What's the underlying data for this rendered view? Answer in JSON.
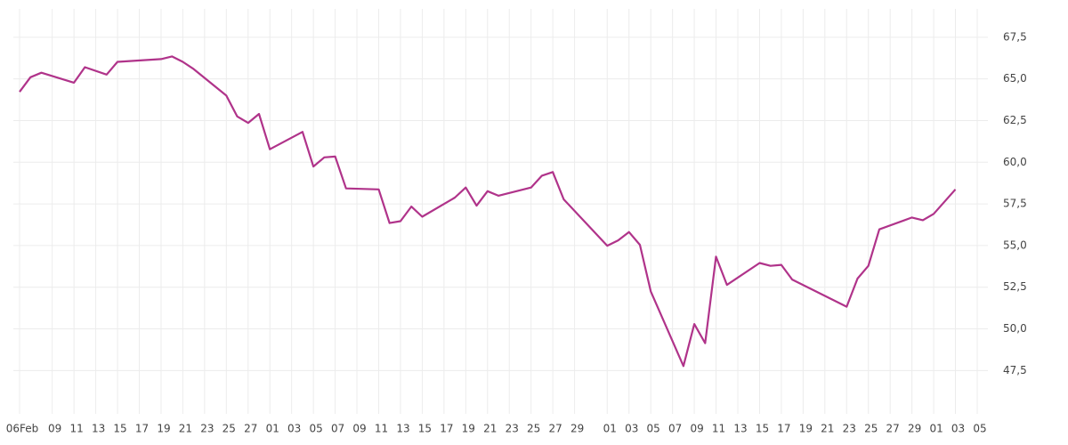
{
  "chart_data": {
    "type": "line",
    "color": "#b0338a",
    "grid": true,
    "x": [
      "02-06",
      "02-07",
      "02-08",
      "02-11",
      "02-12",
      "02-14",
      "02-15",
      "02-19",
      "02-20",
      "02-21",
      "02-22",
      "02-25",
      "02-26",
      "02-27",
      "02-28",
      "03-01",
      "03-04",
      "03-05",
      "03-06",
      "03-07",
      "03-08",
      "03-11",
      "03-12",
      "03-13",
      "03-14",
      "03-15",
      "03-18",
      "03-19",
      "03-20",
      "03-21",
      "03-22",
      "03-25",
      "03-26",
      "03-27",
      "03-28",
      "04-01",
      "04-02",
      "04-03",
      "04-04",
      "04-05",
      "04-08",
      "04-09",
      "04-10",
      "04-11",
      "04-12",
      "04-15",
      "04-16",
      "04-17",
      "04-18",
      "04-23",
      "04-24",
      "04-25",
      "04-26",
      "04-29",
      "04-30",
      "05-01",
      "05-03"
    ],
    "values": [
      64.22,
      65.1,
      65.37,
      64.77,
      65.7,
      65.26,
      66.02,
      66.19,
      66.35,
      66.02,
      65.59,
      64.0,
      62.75,
      62.36,
      62.9,
      60.78,
      61.82,
      59.74,
      60.29,
      60.34,
      58.43,
      58.37,
      56.35,
      56.46,
      57.34,
      56.73,
      57.88,
      58.48,
      57.39,
      58.26,
      57.99,
      58.48,
      59.19,
      59.41,
      57.77,
      54.99,
      55.31,
      55.81,
      55.04,
      52.25,
      47.77,
      50.29,
      49.14,
      54.33,
      52.64,
      53.95,
      53.78,
      53.84,
      52.96,
      51.33,
      53.02,
      53.78,
      55.97,
      56.68,
      56.52,
      56.9,
      58.37
    ],
    "xlim": [
      "02-06",
      "05-05"
    ],
    "xticks": [
      {
        "value": "02-06",
        "label": "06Feb"
      },
      {
        "value": "02-09",
        "label": "09"
      },
      {
        "value": "02-11",
        "label": "11"
      },
      {
        "value": "02-13",
        "label": "13"
      },
      {
        "value": "02-15",
        "label": "15"
      },
      {
        "value": "02-17",
        "label": "17"
      },
      {
        "value": "02-19",
        "label": "19"
      },
      {
        "value": "02-21",
        "label": "21"
      },
      {
        "value": "02-23",
        "label": "23"
      },
      {
        "value": "02-25",
        "label": "25"
      },
      {
        "value": "02-27",
        "label": "27"
      },
      {
        "value": "03-01",
        "label": "01"
      },
      {
        "value": "03-03",
        "label": "03"
      },
      {
        "value": "03-05",
        "label": "05"
      },
      {
        "value": "03-07",
        "label": "07"
      },
      {
        "value": "03-09",
        "label": "09"
      },
      {
        "value": "03-11",
        "label": "11"
      },
      {
        "value": "03-13",
        "label": "13"
      },
      {
        "value": "03-15",
        "label": "15"
      },
      {
        "value": "03-17",
        "label": "17"
      },
      {
        "value": "03-19",
        "label": "19"
      },
      {
        "value": "03-21",
        "label": "21"
      },
      {
        "value": "03-23",
        "label": "23"
      },
      {
        "value": "03-25",
        "label": "25"
      },
      {
        "value": "03-27",
        "label": "27"
      },
      {
        "value": "03-29",
        "label": "29"
      },
      {
        "value": "04-01",
        "label": "01"
      },
      {
        "value": "04-03",
        "label": "03"
      },
      {
        "value": "04-05",
        "label": "05"
      },
      {
        "value": "04-07",
        "label": "07"
      },
      {
        "value": "04-09",
        "label": "09"
      },
      {
        "value": "04-11",
        "label": "11"
      },
      {
        "value": "04-13",
        "label": "13"
      },
      {
        "value": "04-15",
        "label": "15"
      },
      {
        "value": "04-17",
        "label": "17"
      },
      {
        "value": "04-19",
        "label": "19"
      },
      {
        "value": "04-21",
        "label": "21"
      },
      {
        "value": "04-23",
        "label": "23"
      },
      {
        "value": "04-25",
        "label": "25"
      },
      {
        "value": "04-27",
        "label": "27"
      },
      {
        "value": "04-29",
        "label": "29"
      },
      {
        "value": "05-01",
        "label": "01"
      },
      {
        "value": "05-03",
        "label": "03"
      },
      {
        "value": "05-05",
        "label": "05"
      }
    ],
    "ylim": [
      44.9,
      69.2
    ],
    "yticks": [
      {
        "value": 47.5,
        "label": "47,5"
      },
      {
        "value": 50,
        "label": "50,0"
      },
      {
        "value": 52.5,
        "label": "52,5"
      },
      {
        "value": 55,
        "label": "55,0"
      },
      {
        "value": 57.5,
        "label": "57,5"
      },
      {
        "value": 60,
        "label": "60,0"
      },
      {
        "value": 62.5,
        "label": "62,5"
      },
      {
        "value": 65,
        "label": "65,0"
      },
      {
        "value": 67.5,
        "label": "67,5"
      }
    ]
  }
}
